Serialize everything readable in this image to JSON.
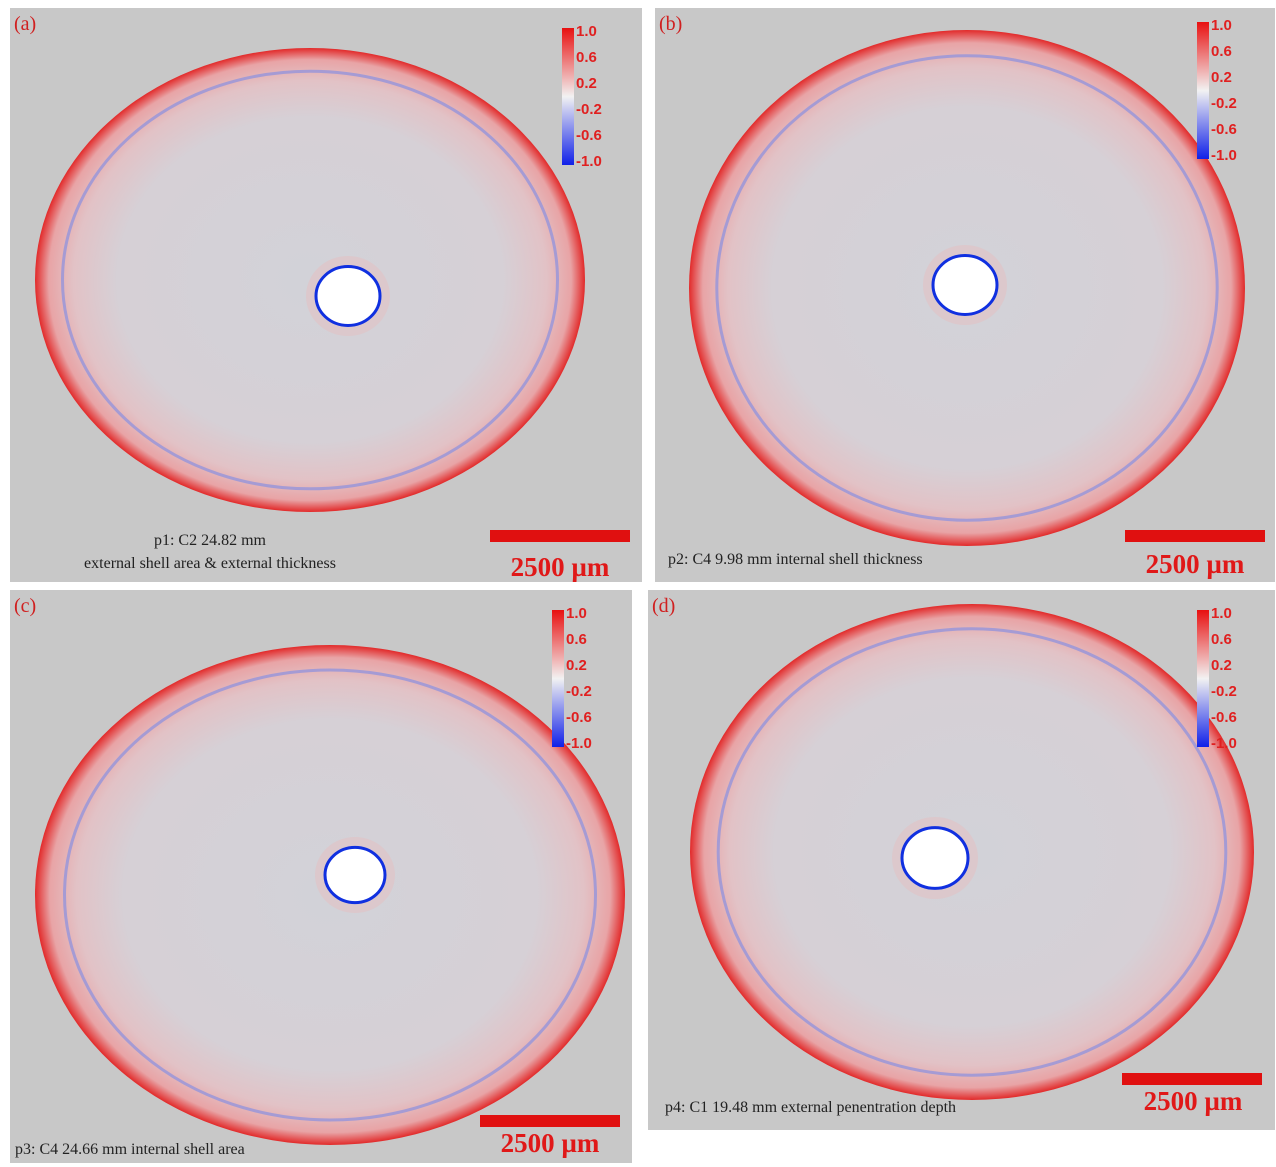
{
  "panels": [
    {
      "label": "(a)",
      "caption": [
        "p1: C2 24.82 mm",
        "external shell area & external thickness"
      ],
      "scale_bar": "2500 µm"
    },
    {
      "label": "(b)",
      "caption": [
        "p2: C4 9.98 mm internal shell thickness"
      ],
      "scale_bar": "2500 µm"
    },
    {
      "label": "(c)",
      "caption": [
        "p3: C4 24.66 mm internal shell area"
      ],
      "scale_bar": "2500 µm"
    },
    {
      "label": "(d)",
      "caption": [
        "p4: C1 19.48 mm external penentration depth"
      ],
      "scale_bar": "2500 µm"
    }
  ],
  "colorbar_ticks": [
    "1.0",
    "0.6",
    "0.2",
    "-0.2",
    "-0.6",
    "-1.0"
  ]
}
